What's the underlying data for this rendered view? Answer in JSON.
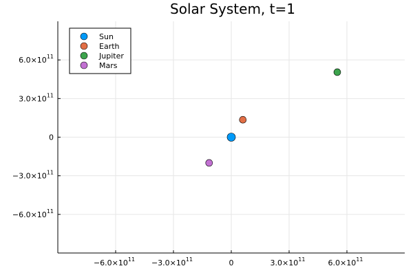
{
  "chart_data": {
    "type": "scatter",
    "title": "Solar System, t=1",
    "xlabel": "",
    "ylabel": "",
    "xlim": [
      -900000000000,
      900000000000
    ],
    "ylim": [
      -900000000000,
      900000000000
    ],
    "grid": true,
    "legend_position": "top-left",
    "x_ticks": [
      {
        "value": -600000000000,
        "mantissa": "−6.0×10",
        "exp": "11"
      },
      {
        "value": -300000000000,
        "mantissa": "−3.0×10",
        "exp": "11"
      },
      {
        "value": 0,
        "mantissa": "0",
        "exp": ""
      },
      {
        "value": 300000000000,
        "mantissa": "3.0×10",
        "exp": "11"
      },
      {
        "value": 600000000000,
        "mantissa": "6.0×10",
        "exp": "11"
      }
    ],
    "y_ticks": [
      {
        "value": 600000000000,
        "mantissa": "6.0×10",
        "exp": "11"
      },
      {
        "value": 300000000000,
        "mantissa": "3.0×10",
        "exp": "11"
      },
      {
        "value": 0,
        "mantissa": "0",
        "exp": ""
      },
      {
        "value": -300000000000,
        "mantissa": "−3.0×10",
        "exp": "11"
      },
      {
        "value": -600000000000,
        "mantissa": "−6.0×10",
        "exp": "11"
      }
    ],
    "series": [
      {
        "name": "Sun",
        "color": "#009af9",
        "marker": "large-circle",
        "points": [
          {
            "x": 0,
            "y": 0
          }
        ]
      },
      {
        "name": "Earth",
        "color": "#e26f46",
        "marker": "circle",
        "points": [
          {
            "x": 60000000000,
            "y": 135000000000
          }
        ]
      },
      {
        "name": "Jupiter",
        "color": "#3da44d",
        "marker": "circle",
        "points": [
          {
            "x": 550000000000,
            "y": 505000000000
          }
        ]
      },
      {
        "name": "Mars",
        "color": "#c271d2",
        "marker": "circle",
        "points": [
          {
            "x": -115000000000,
            "y": -200000000000
          }
        ]
      }
    ]
  }
}
